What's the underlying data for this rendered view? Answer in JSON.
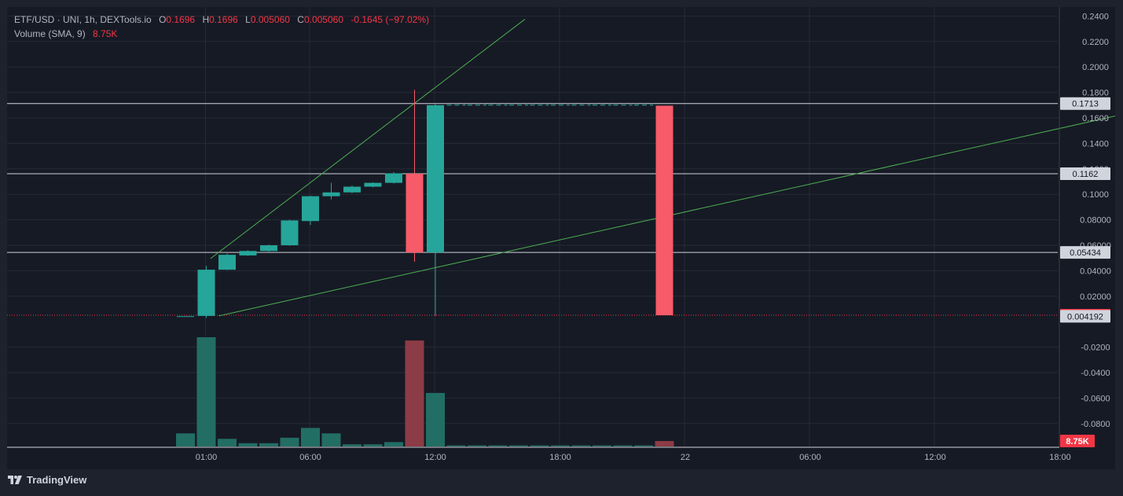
{
  "legend": {
    "symbol_line": "ETF/USD · UNI, 1h, DEXTools.io",
    "o_label": "O",
    "o_value": "0.1696",
    "h_label": "H",
    "h_value": "0.1696",
    "l_label": "L",
    "l_value": "0.005060",
    "c_label": "C",
    "c_value": "0.005060",
    "change": "-0.1645 (−97.02%)",
    "volume_label": "Volume (SMA, 9)",
    "volume_value": "8.75K"
  },
  "brand": "TradingView",
  "colors": {
    "up": "#26a69a",
    "down": "#f75a68",
    "up_volume": "#226e64",
    "down_volume": "#8c3c46",
    "trendline": "#4caf50",
    "hline": "#d1d4dc",
    "grid": "#262a34",
    "last_price": "#f23645"
  },
  "chart_data": {
    "type": "candlestick",
    "timeframe": "1h",
    "price_axis": {
      "ylim": [
        -0.1,
        0.245
      ],
      "ticks": [
        "0.2400",
        "0.2200",
        "0.2000",
        "0.1800",
        "0.1600",
        "0.1400",
        "0.1200",
        "0.1000",
        "0.08000",
        "0.06000",
        "0.04000",
        "0.02000",
        "-0.0200",
        "-0.0400",
        "-0.0600",
        "-0.0800"
      ],
      "tick_values": [
        0.24,
        0.22,
        0.2,
        0.18,
        0.16,
        0.14,
        0.12,
        0.1,
        0.08,
        0.06,
        0.04,
        0.02,
        -0.02,
        -0.04,
        -0.06,
        -0.08
      ]
    },
    "time_axis": {
      "ticks": [
        "01:00",
        "06:00",
        "12:00",
        "18:00",
        "22",
        "06:00",
        "12:00",
        "18:00"
      ],
      "tick_hours": [
        1,
        6,
        12,
        18,
        24,
        30,
        36,
        42
      ]
    },
    "candles": [
      {
        "hour": 0,
        "o": 0.0042,
        "h": 0.0044,
        "l": 0.004,
        "c": 0.0043
      },
      {
        "hour": 1,
        "o": 0.0045,
        "h": 0.0437,
        "l": 0.003,
        "c": 0.0408
      },
      {
        "hour": 2,
        "o": 0.0408,
        "h": 0.0535,
        "l": 0.0405,
        "c": 0.0525
      },
      {
        "hour": 3,
        "o": 0.052,
        "h": 0.056,
        "l": 0.0515,
        "c": 0.0555
      },
      {
        "hour": 4,
        "o": 0.0555,
        "h": 0.0605,
        "l": 0.0545,
        "c": 0.06
      },
      {
        "hour": 5,
        "o": 0.06,
        "h": 0.08,
        "l": 0.0595,
        "c": 0.0795
      },
      {
        "hour": 6,
        "o": 0.079,
        "h": 0.099,
        "l": 0.076,
        "c": 0.0985
      },
      {
        "hour": 7,
        "o": 0.0985,
        "h": 0.109,
        "l": 0.096,
        "c": 0.1015
      },
      {
        "hour": 8,
        "o": 0.1015,
        "h": 0.107,
        "l": 0.101,
        "c": 0.106
      },
      {
        "hour": 9,
        "o": 0.106,
        "h": 0.1095,
        "l": 0.1055,
        "c": 0.109
      },
      {
        "hour": 10,
        "o": 0.109,
        "h": 0.1175,
        "l": 0.1085,
        "c": 0.1165
      },
      {
        "hour": 11,
        "o": 0.1162,
        "h": 0.182,
        "l": 0.047,
        "c": 0.0543
      },
      {
        "hour": 12,
        "o": 0.0543,
        "h": 0.1713,
        "l": 0.0045,
        "c": 0.17
      },
      {
        "hour": 13,
        "o": 0.17,
        "h": 0.17,
        "l": 0.17,
        "c": 0.17
      },
      {
        "hour": 14,
        "o": 0.17,
        "h": 0.17,
        "l": 0.17,
        "c": 0.17
      },
      {
        "hour": 15,
        "o": 0.17,
        "h": 0.17,
        "l": 0.17,
        "c": 0.17
      },
      {
        "hour": 16,
        "o": 0.17,
        "h": 0.17,
        "l": 0.17,
        "c": 0.17
      },
      {
        "hour": 17,
        "o": 0.17,
        "h": 0.17,
        "l": 0.17,
        "c": 0.17
      },
      {
        "hour": 18,
        "o": 0.17,
        "h": 0.17,
        "l": 0.17,
        "c": 0.17
      },
      {
        "hour": 19,
        "o": 0.17,
        "h": 0.17,
        "l": 0.17,
        "c": 0.17
      },
      {
        "hour": 20,
        "o": 0.17,
        "h": 0.17,
        "l": 0.17,
        "c": 0.17
      },
      {
        "hour": 21,
        "o": 0.17,
        "h": 0.17,
        "l": 0.17,
        "c": 0.17
      },
      {
        "hour": 22,
        "o": 0.17,
        "h": 0.17,
        "l": 0.17,
        "c": 0.17
      },
      {
        "hour": 23,
        "o": 0.1696,
        "h": 0.1696,
        "l": 0.00506,
        "c": 0.00506
      }
    ],
    "volume_relative": [
      0.12,
      1.0,
      0.07,
      0.03,
      0.03,
      0.08,
      0.17,
      0.12,
      0.02,
      0.02,
      0.04,
      0.97,
      0.49,
      0.01,
      0.01,
      0.01,
      0.01,
      0.01,
      0.01,
      0.01,
      0.01,
      0.01,
      0.01,
      0.05
    ],
    "horizontal_lines": [
      {
        "value": 0.1713,
        "label": "0.1713"
      },
      {
        "value": 0.1162,
        "label": "0.1162"
      },
      {
        "value": 0.05434,
        "label": "0.05434"
      }
    ],
    "trendlines": [
      {
        "from": {
          "hour": 1.2,
          "price": 0.0495
        },
        "to": {
          "hour": 16.3,
          "price": 0.2375
        }
      },
      {
        "from": {
          "hour": 1.6,
          "price": 0.0045
        },
        "to": {
          "hour": 50,
          "price": 0.181
        }
      }
    ],
    "last_price": {
      "value": 0.00506,
      "label": "0.005060"
    },
    "price_label_2": {
      "value": 0.004192,
      "label": "0.004192"
    },
    "volume_sma_label": "8.75K"
  }
}
